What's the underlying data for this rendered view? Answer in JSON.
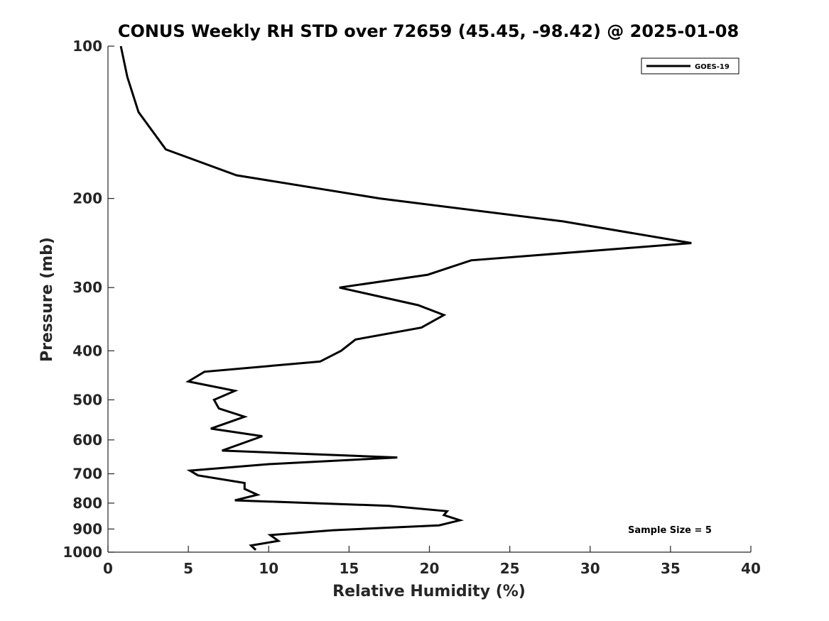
{
  "chart_data": {
    "type": "line",
    "title": "CONUS Weekly RH STD over 72659 (45.45, -98.42) @ 2025-01-08",
    "xlabel": "Relative Humidity (%)",
    "ylabel": "Pressure (mb)",
    "xlim": [
      0,
      40
    ],
    "ylim": [
      1000,
      100
    ],
    "y_scale": "log",
    "y_reversed": true,
    "x_ticks": [
      0,
      5,
      10,
      15,
      20,
      25,
      30,
      35,
      40
    ],
    "y_ticks": [
      100,
      200,
      300,
      400,
      500,
      600,
      700,
      800,
      900,
      1000
    ],
    "grid": false,
    "legend": {
      "placement": "top-right",
      "entries": [
        "GOES-19"
      ]
    },
    "annotations": [
      {
        "text": "Sample Size = 5",
        "placement": "bottom-right"
      }
    ],
    "series": [
      {
        "name": "GOES-19",
        "color": "#000000",
        "points": [
          [
            0.8,
            100
          ],
          [
            1.2,
            115
          ],
          [
            1.9,
            135
          ],
          [
            3.6,
            160
          ],
          [
            8.0,
            180
          ],
          [
            16.9,
            200
          ],
          [
            28.3,
            222
          ],
          [
            36.3,
            245
          ],
          [
            22.6,
            265
          ],
          [
            19.9,
            283
          ],
          [
            14.4,
            300
          ],
          [
            19.3,
            325
          ],
          [
            20.9,
            340
          ],
          [
            19.5,
            360
          ],
          [
            15.4,
            380
          ],
          [
            14.5,
            400
          ],
          [
            13.2,
            420
          ],
          [
            6.0,
            440
          ],
          [
            5.0,
            460
          ],
          [
            7.9,
            480
          ],
          [
            6.6,
            500
          ],
          [
            6.9,
            520
          ],
          [
            8.5,
            540
          ],
          [
            6.4,
            570
          ],
          [
            9.6,
            590
          ],
          [
            7.1,
            630
          ],
          [
            18.0,
            650
          ],
          [
            10.0,
            670
          ],
          [
            5.1,
            690
          ],
          [
            5.6,
            705
          ],
          [
            8.5,
            730
          ],
          [
            8.5,
            750
          ],
          [
            9.3,
            770
          ],
          [
            7.9,
            790
          ],
          [
            17.5,
            810
          ],
          [
            21.1,
            830
          ],
          [
            20.9,
            845
          ],
          [
            21.9,
            865
          ],
          [
            20.6,
            885
          ],
          [
            14.0,
            905
          ],
          [
            10.1,
            925
          ],
          [
            10.6,
            950
          ],
          [
            8.9,
            970
          ],
          [
            9.2,
            990
          ]
        ]
      }
    ]
  }
}
